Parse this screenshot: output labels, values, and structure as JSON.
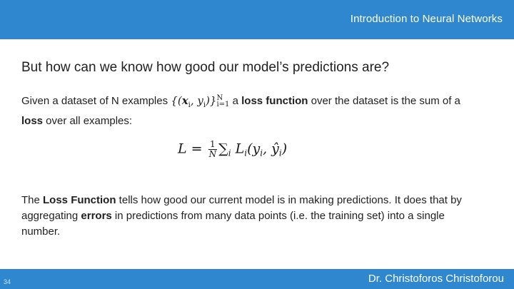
{
  "header": {
    "course_title": "Introduction to Neural Networks"
  },
  "slide": {
    "heading": "But how can we know how good our model’s predictions are?",
    "para1": {
      "lead": "Given a dataset of N examples ",
      "set_open": "{(",
      "x": "x",
      "i_sub1": "i",
      "comma_y": ", y",
      "i_sub2": "i",
      "set_close": ")}",
      "sup": "N",
      "sub": "i=1",
      "gap": "  a ",
      "term_loss_function": "loss function",
      "mid": " over the dataset is the sum of a ",
      "term_loss": "loss",
      "tail": " over all examples:"
    },
    "equation": {
      "lhs": "L =",
      "frac_num": "1",
      "frac_den": "N",
      "sum": "∑",
      "sum_sub": "i",
      "L": " L",
      "L_sub": "i",
      "args_open": "(y",
      "y_sub": "i",
      "comma": ", ",
      "yhat": "ŷ",
      "yhat_sub": "i",
      "args_close": ")"
    },
    "para2": {
      "lead": "The ",
      "term_loss_function": "Loss Function",
      "mid": " tells how good our current model is in making predictions. It does that by aggregating  ",
      "term_errors": "errors",
      "tail": " in predictions from many data points (i.e. the training set) into a single number."
    }
  },
  "footer": {
    "page_number": "34",
    "author": "Dr. Christoforos Christoforou"
  }
}
